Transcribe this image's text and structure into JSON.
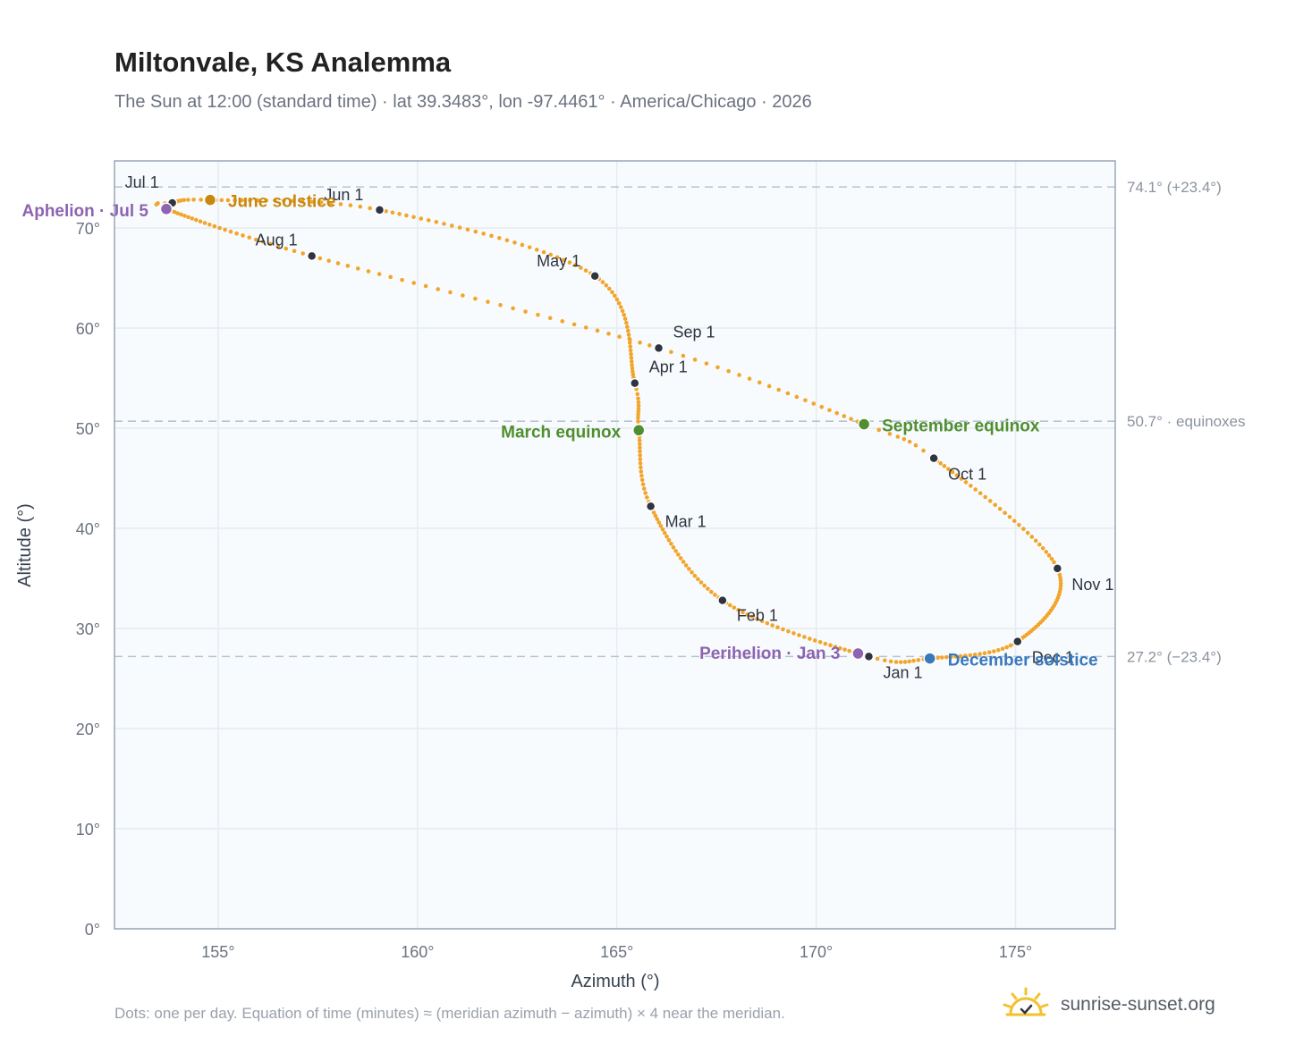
{
  "page": {
    "title": "Miltonvale, KS Analemma",
    "subtitle": "The Sun at 12:00 (standard time) · lat 39.3483°, lon -97.4461° · America/Chicago · 2026",
    "footnote": "Dots: one per day. Equation of time (minutes) ≈ (meridian azimuth − azimuth) × 4 near the meridian.",
    "brand": "sunrise-sunset.org",
    "brand_icon": "sun-logo-icon"
  },
  "chart_data": {
    "type": "scatter",
    "title": "Miltonvale, KS Analemma",
    "xlabel": "Azimuth (°)",
    "ylabel": "Altitude (°)",
    "xlim": [
      152.4,
      177.5
    ],
    "ylim": [
      0,
      76.7
    ],
    "xticks": [
      {
        "value": 155,
        "label": "155°"
      },
      {
        "value": 160,
        "label": "160°"
      },
      {
        "value": 165,
        "label": "165°"
      },
      {
        "value": 170,
        "label": "170°"
      },
      {
        "value": 175,
        "label": "175°"
      }
    ],
    "yticks": [
      {
        "value": 0,
        "label": "0°"
      },
      {
        "value": 10,
        "label": "10°"
      },
      {
        "value": 20,
        "label": "20°"
      },
      {
        "value": 30,
        "label": "30°"
      },
      {
        "value": 40,
        "label": "40°"
      },
      {
        "value": 50,
        "label": "50°"
      },
      {
        "value": 60,
        "label": "60°"
      },
      {
        "value": 70,
        "label": "70°"
      }
    ],
    "grid": true,
    "colors": {
      "path": "#f2a52a",
      "month_marker": "#2f3440",
      "solstice_june": "#c8880e",
      "equinox": "#4f8f2f",
      "solstice_december": "#3a78be",
      "apsis": "#8d63b2",
      "reference_line": "#b7c3d1",
      "plot_background": "#f8fbfd",
      "grid": "#e6ebf1",
      "frame": "#9aa6b5"
    },
    "reference_lines": [
      {
        "y": 74.1,
        "label": "74.1° (+23.4°)"
      },
      {
        "y": 50.7,
        "label": "50.7° · equinoxes"
      },
      {
        "y": 27.2,
        "label": "27.2° (−23.4°)"
      }
    ],
    "months": [
      {
        "label": "Jan 1",
        "x": 171.32,
        "y": 27.2
      },
      {
        "label": "Feb 1",
        "x": 167.65,
        "y": 32.8
      },
      {
        "label": "Mar 1",
        "x": 165.85,
        "y": 42.2
      },
      {
        "label": "Apr 1",
        "x": 165.45,
        "y": 54.5
      },
      {
        "label": "May 1",
        "x": 164.45,
        "y": 65.2
      },
      {
        "label": "Jun 1",
        "x": 159.05,
        "y": 71.8
      },
      {
        "label": "Jul 1",
        "x": 153.85,
        "y": 72.5
      },
      {
        "label": "Aug 1",
        "x": 157.35,
        "y": 67.2
      },
      {
        "label": "Sep 1",
        "x": 166.05,
        "y": 58.0
      },
      {
        "label": "Oct 1",
        "x": 172.95,
        "y": 47.0
      },
      {
        "label": "Nov 1",
        "x": 176.05,
        "y": 36.0
      },
      {
        "label": "Dec 1",
        "x": 175.05,
        "y": 28.7
      }
    ],
    "events": [
      {
        "label": "June solstice",
        "x": 154.8,
        "y": 72.8,
        "kind": "solstice_june"
      },
      {
        "label": "March equinox",
        "x": 165.55,
        "y": 49.8,
        "kind": "equinox"
      },
      {
        "label": "September equinox",
        "x": 171.2,
        "y": 50.4,
        "kind": "equinox"
      },
      {
        "label": "December solstice",
        "x": 172.85,
        "y": 27.0,
        "kind": "solstice_december"
      },
      {
        "label": "Perihelion · Jan 3",
        "x": 171.05,
        "y": 27.5,
        "kind": "apsis"
      },
      {
        "label": "Aphelion · Jul 5",
        "x": 153.7,
        "y": 71.9,
        "kind": "apsis"
      }
    ],
    "daily_points": {
      "n_per_year": 365,
      "path_keypoints": [
        {
          "day": 0,
          "x": 171.32,
          "y": 27.2
        },
        {
          "day": 31,
          "x": 167.65,
          "y": 32.8
        },
        {
          "day": 59,
          "x": 165.85,
          "y": 42.2
        },
        {
          "day": 78,
          "x": 165.55,
          "y": 49.8
        },
        {
          "day": 90,
          "x": 165.45,
          "y": 54.5
        },
        {
          "day": 120,
          "x": 164.45,
          "y": 65.2
        },
        {
          "day": 151,
          "x": 159.05,
          "y": 71.8
        },
        {
          "day": 171,
          "x": 154.8,
          "y": 72.8
        },
        {
          "day": 181,
          "x": 153.85,
          "y": 72.5
        },
        {
          "day": 185,
          "x": 153.7,
          "y": 71.9
        },
        {
          "day": 212,
          "x": 157.35,
          "y": 67.2
        },
        {
          "day": 243,
          "x": 166.05,
          "y": 58.0
        },
        {
          "day": 265,
          "x": 171.2,
          "y": 50.4
        },
        {
          "day": 273,
          "x": 172.95,
          "y": 47.0
        },
        {
          "day": 304,
          "x": 176.05,
          "y": 36.0
        },
        {
          "day": 334,
          "x": 175.05,
          "y": 28.7
        },
        {
          "day": 354,
          "x": 172.85,
          "y": 27.0
        },
        {
          "day": 365,
          "x": 171.32,
          "y": 27.2
        }
      ]
    }
  }
}
